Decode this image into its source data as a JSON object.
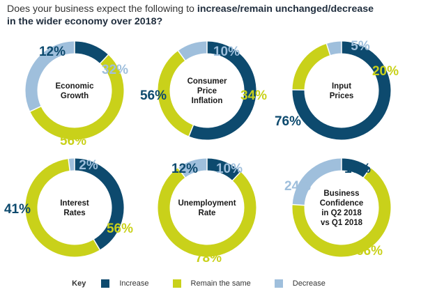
{
  "title": {
    "prefix": "Does your business expect the following to ",
    "bold": "increase/remain unchanged/decrease",
    "line2": "in the wider economy over 2018?"
  },
  "colors": {
    "increase": "#0d4a6e",
    "same": "#c9d11a",
    "decrease": "#9fbfdc"
  },
  "legend": {
    "key": "Key",
    "increase": "Increase",
    "same": "Remain the same",
    "decrease": "Decrease"
  },
  "chart_data": [
    {
      "type": "pie",
      "center_label": [
        "Economic",
        "Growth"
      ],
      "increase": 12,
      "same": 56,
      "decrease": 32,
      "labels": {
        "increase": "12%",
        "same": "56%",
        "decrease": "32%"
      }
    },
    {
      "type": "pie",
      "center_label": [
        "Consumer",
        "Price",
        "Inflation"
      ],
      "increase": 56,
      "same": 34,
      "decrease": 10,
      "labels": {
        "increase": "56%",
        "same": "34%",
        "decrease": "10%"
      }
    },
    {
      "type": "pie",
      "center_label": [
        "Input",
        "Prices"
      ],
      "increase": 76,
      "same": 20,
      "decrease": 5,
      "labels": {
        "increase": "76%",
        "same": "20%",
        "decrease": "5%"
      }
    },
    {
      "type": "pie",
      "center_label": [
        "Interest",
        "Rates"
      ],
      "increase": 41,
      "same": 56,
      "decrease": 2,
      "labels": {
        "increase": "41%",
        "same": "56%",
        "decrease": "2%"
      }
    },
    {
      "type": "pie",
      "center_label": [
        "Unemployment",
        "Rate"
      ],
      "increase": 12,
      "same": 78,
      "decrease": 10,
      "labels": {
        "increase": "12%",
        "same": "78%",
        "decrease": "10%"
      }
    },
    {
      "type": "pie",
      "center_label": [
        "Business",
        "Confidence",
        "in Q2 2018",
        "vs Q1 2018"
      ],
      "increase": 10,
      "same": 66,
      "decrease": 24,
      "labels": {
        "increase": "10%",
        "same": "66%",
        "decrease": "24%"
      }
    }
  ]
}
